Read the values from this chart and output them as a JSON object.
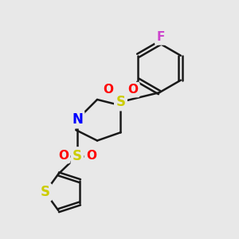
{
  "fig_bg": "#e8e8e8",
  "bond_color": "#1a1a1a",
  "bond_width": 1.8,
  "atom_colors": {
    "S": "#cccc00",
    "O": "#ff0000",
    "N": "#0000ff",
    "F": "#cc44cc",
    "C": "#1a1a1a"
  },
  "font_size_atom": 10
}
